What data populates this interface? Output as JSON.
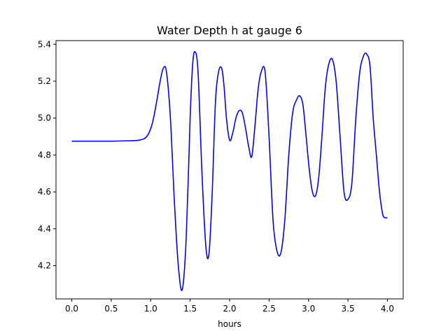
{
  "chart_data": {
    "type": "line",
    "title": "Water Depth h at gauge 6",
    "xlabel": "hours",
    "ylabel": "",
    "xlim": [
      -0.2,
      4.2
    ],
    "ylim": [
      4.02,
      5.42
    ],
    "x_ticks": [
      0.0,
      0.5,
      1.0,
      1.5,
      2.0,
      2.5,
      3.0,
      3.5,
      4.0
    ],
    "x_tick_labels": [
      "0.0",
      "0.5",
      "1.0",
      "1.5",
      "2.0",
      "2.5",
      "3.0",
      "3.5",
      "4.0"
    ],
    "y_ticks": [
      4.2,
      4.4,
      4.6,
      4.8,
      5.0,
      5.2,
      5.4
    ],
    "y_tick_labels": [
      "4.2",
      "4.4",
      "4.6",
      "4.8",
      "5.0",
      "5.2",
      "5.4"
    ],
    "grid": false,
    "series": [
      {
        "color": "#0000ff",
        "x": [
          0.0,
          0.5,
          0.7,
          0.85,
          0.95,
          1.02,
          1.08,
          1.12,
          1.16,
          1.2,
          1.25,
          1.3,
          1.35,
          1.4,
          1.45,
          1.5,
          1.53,
          1.56,
          1.6,
          1.65,
          1.7,
          1.74,
          1.78,
          1.82,
          1.86,
          1.9,
          1.93,
          1.96,
          2.0,
          2.04,
          2.08,
          2.12,
          2.16,
          2.2,
          2.24,
          2.28,
          2.32,
          2.36,
          2.4,
          2.45,
          2.5,
          2.55,
          2.6,
          2.65,
          2.7,
          2.75,
          2.8,
          2.85,
          2.89,
          2.93,
          2.97,
          3.01,
          3.05,
          3.09,
          3.13,
          3.17,
          3.21,
          3.25,
          3.3,
          3.35,
          3.4,
          3.45,
          3.5,
          3.55,
          3.6,
          3.65,
          3.7,
          3.74,
          3.78,
          3.82,
          3.86,
          3.9,
          3.94,
          3.97,
          4.0
        ],
        "y": [
          4.875,
          4.875,
          4.877,
          4.88,
          4.9,
          4.97,
          5.1,
          5.2,
          5.27,
          5.25,
          5.0,
          4.55,
          4.2,
          4.07,
          4.35,
          5.0,
          5.28,
          5.36,
          5.25,
          4.7,
          4.3,
          4.27,
          4.6,
          5.08,
          5.25,
          5.27,
          5.17,
          5.0,
          4.88,
          4.92,
          5.0,
          5.04,
          5.03,
          4.95,
          4.85,
          4.79,
          4.95,
          5.15,
          5.25,
          5.25,
          4.9,
          4.45,
          4.28,
          4.27,
          4.45,
          4.8,
          5.03,
          5.1,
          5.12,
          5.07,
          4.9,
          4.72,
          4.6,
          4.58,
          4.68,
          4.9,
          5.15,
          5.28,
          5.32,
          5.2,
          4.9,
          4.6,
          4.56,
          4.65,
          5.0,
          5.25,
          5.34,
          5.345,
          5.28,
          5.0,
          4.8,
          4.6,
          4.48,
          4.46,
          4.46
        ]
      }
    ]
  }
}
